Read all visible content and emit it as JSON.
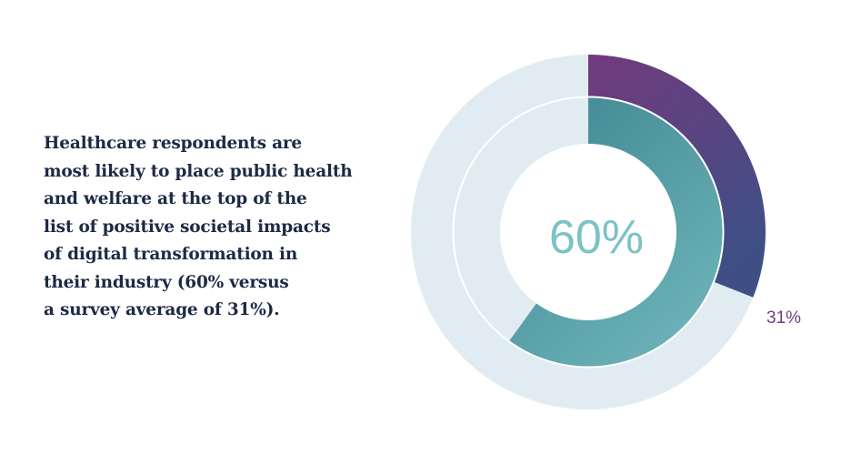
{
  "caption_lines": [
    "Healthcare respondents are",
    "most likely to place public health",
    "and welfare at the top of the",
    "list of positive societal impacts",
    "of digital transformation in",
    "their industry (60% versus",
    "a survey average of 31%)."
  ],
  "chart_data": {
    "type": "pie",
    "subtype": "nested-donut",
    "series": [
      {
        "name": "Survey average",
        "value": 31,
        "unit": "%",
        "label": "31%",
        "color_start": "#723a7c",
        "color_end": "#3f4f86",
        "ring": "outer"
      },
      {
        "name": "Healthcare respondents",
        "value": 60,
        "unit": "%",
        "label": "60%",
        "color_start": "#3e8590",
        "color_end": "#6cb2b8",
        "ring": "inner"
      }
    ],
    "track_color": "#e1ecf2",
    "center_label": "60%",
    "center_label_color": "#7cc2c6",
    "outer_label_color": "#6d3d7e"
  }
}
